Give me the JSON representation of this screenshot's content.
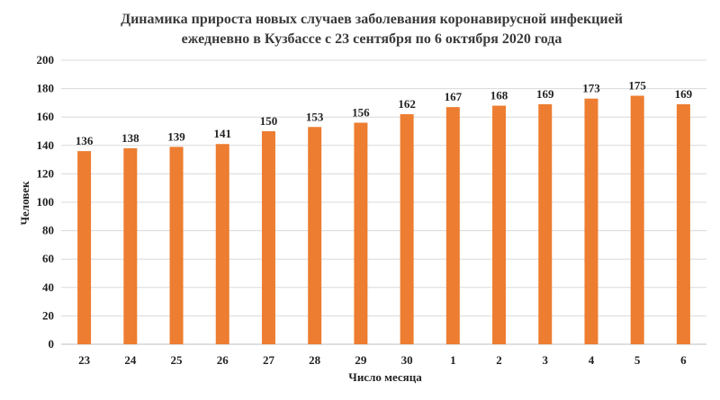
{
  "chart_data": {
    "type": "bar",
    "title_line1": "Динамика прироста новых случаев заболевания коронавирусной инфекцией",
    "title_line2": "ежедневно в Кузбассе с 23 сентября по 6 октября 2020 года",
    "xlabel": "Число месяца",
    "ylabel": "Человек",
    "ylim": [
      0,
      200
    ],
    "yticks": [
      0,
      20,
      40,
      60,
      80,
      100,
      120,
      140,
      160,
      180,
      200
    ],
    "grid": true,
    "bar_color": "#ED7D31",
    "categories": [
      "23",
      "24",
      "25",
      "26",
      "27",
      "28",
      "29",
      "30",
      "1",
      "2",
      "3",
      "4",
      "5",
      "6"
    ],
    "values": [
      136,
      138,
      139,
      141,
      150,
      153,
      156,
      162,
      167,
      168,
      169,
      173,
      175,
      169
    ]
  }
}
